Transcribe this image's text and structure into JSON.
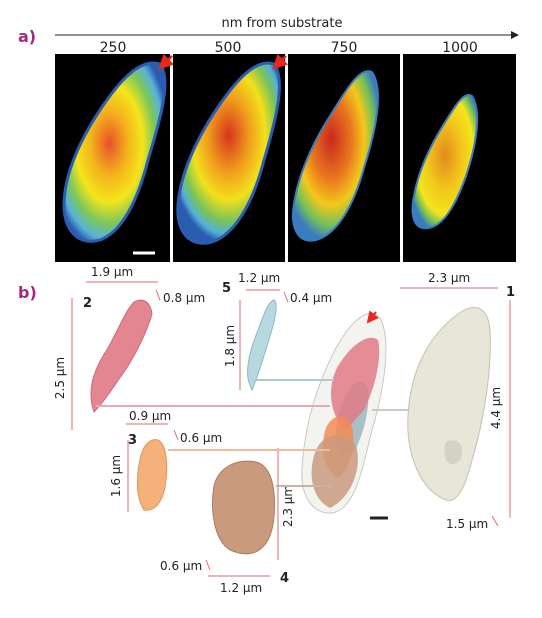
{
  "panel_a": {
    "label": "a)",
    "axis_title": "nm from substrate",
    "slices": [
      "250",
      "500",
      "750",
      "1000"
    ]
  },
  "panel_b": {
    "label": "b)",
    "objects": [
      {
        "id": "1",
        "width": "2.3 µm",
        "height": "4.4 µm",
        "depth": "1.5 µm",
        "color": "#e8e6d8"
      },
      {
        "id": "2",
        "width": "1.9 µm",
        "height": "2.5 µm",
        "depth": "0.8 µm",
        "color": "#e07a86"
      },
      {
        "id": "3",
        "width": "0.9 µm",
        "height": "1.6 µm",
        "depth": "0.6 µm",
        "color": "#f4b27a"
      },
      {
        "id": "4",
        "width": "1.2 µm",
        "height": "2.3 µm",
        "depth": "0.6 µm",
        "color": "#c99a7e"
      },
      {
        "id": "5",
        "width": "1.2 µm",
        "height": "1.8 µm",
        "depth": "0.4 µm",
        "color": "#b8d8e0"
      }
    ]
  }
}
